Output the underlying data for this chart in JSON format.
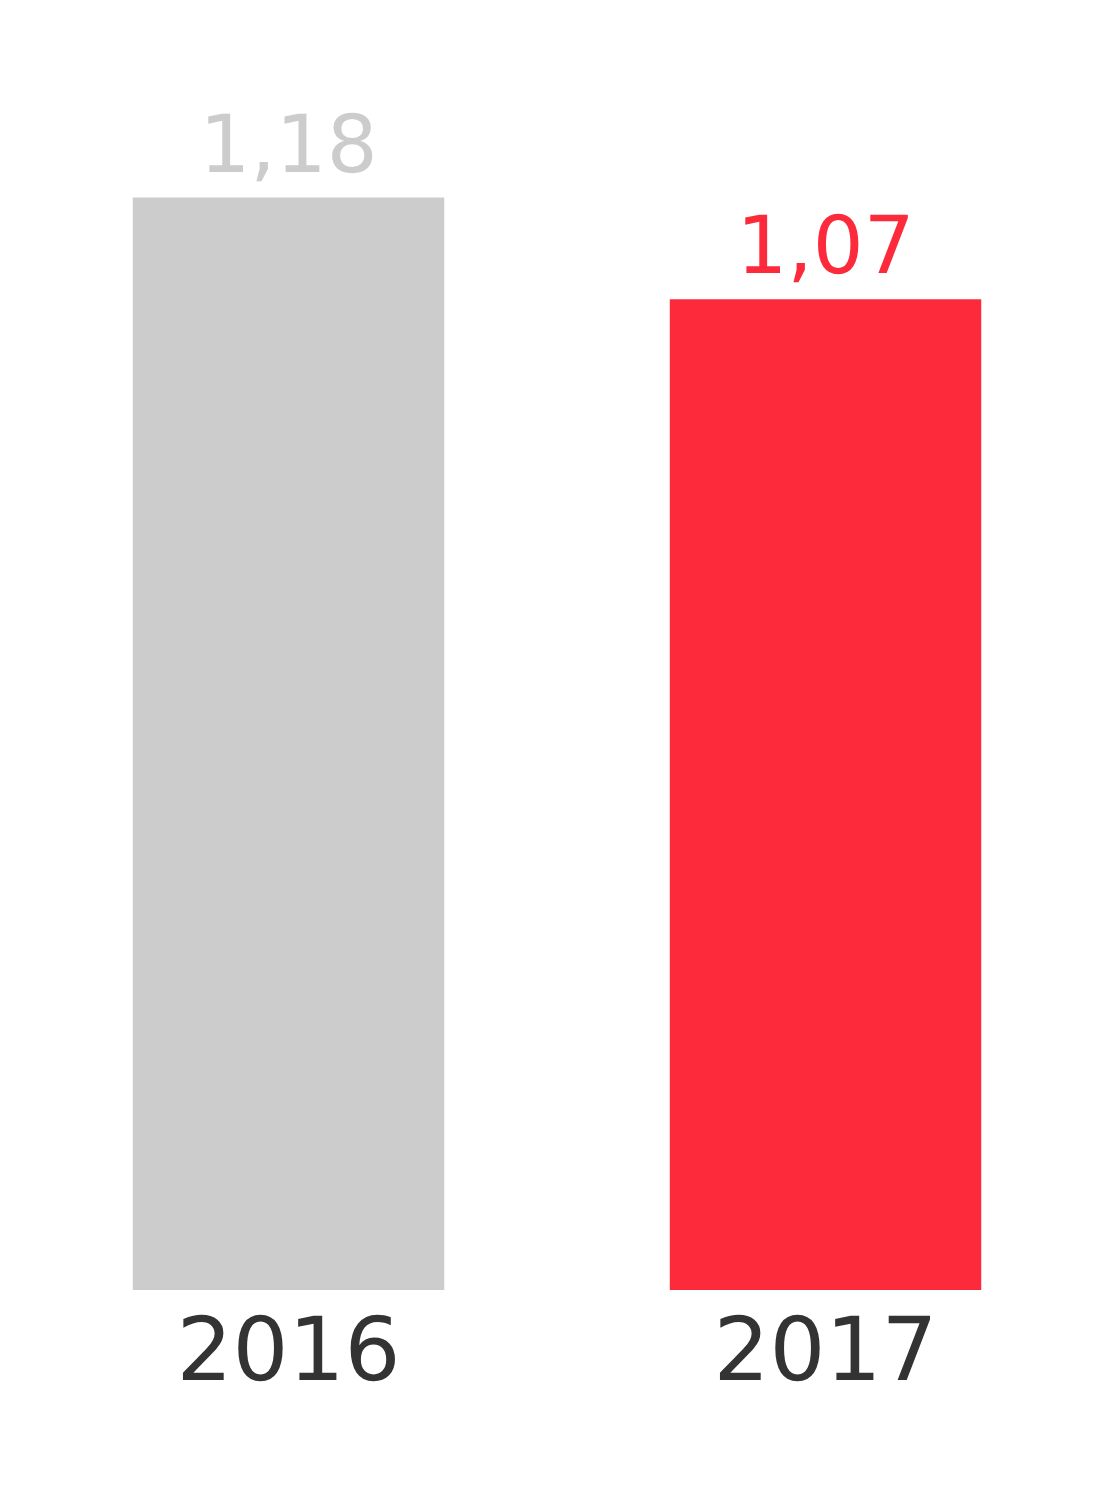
{
  "chart_data": {
    "type": "bar",
    "categories": [
      "2016",
      "2017"
    ],
    "values": [
      1.18,
      1.07
    ],
    "colors": [
      "#cccccc",
      "#fc2a3a"
    ],
    "value_labels": [
      "1,18",
      "1,07"
    ],
    "tick_labels": "x"
  }
}
